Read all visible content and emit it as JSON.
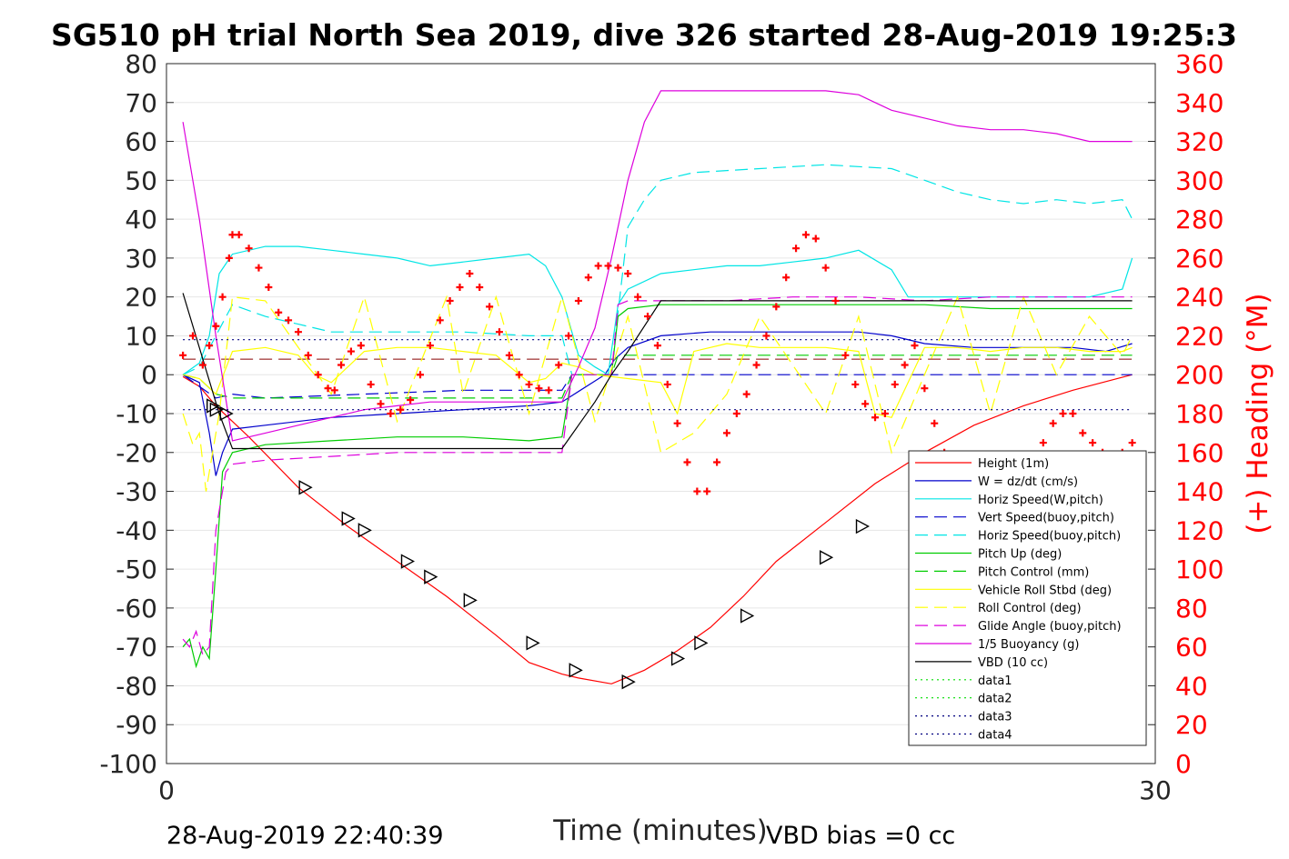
{
  "page": {
    "title": "SG510 pH trial North Sea 2019, dive 326 started 28-Aug-2019 19:25:3",
    "timestamp": "28-Aug-2019 22:40:39",
    "vbd_bias": "VBD bias =0 cc"
  },
  "chart_data": {
    "type": "line",
    "xlabel": "Time (minutes)",
    "ylabel": "",
    "y2label": "(+) Heading (°M)",
    "xlim": [
      0,
      30
    ],
    "ylim": [
      -100,
      80
    ],
    "y2lim": [
      0,
      360
    ],
    "x_ticks": [
      "0",
      "30"
    ],
    "y_ticks": [
      "80",
      "70",
      "60",
      "50",
      "40",
      "30",
      "20",
      "10",
      "0",
      "-10",
      "-20",
      "-30",
      "-40",
      "-50",
      "-60",
      "-70",
      "-80",
      "-90",
      "-100"
    ],
    "y2_ticks": [
      "360",
      "340",
      "320",
      "300",
      "280",
      "260",
      "240",
      "220",
      "200",
      "180",
      "160",
      "140",
      "120",
      "100",
      "80",
      "60",
      "40",
      "20",
      "0"
    ],
    "grid": true,
    "legend_position": "bottom-right",
    "colors": {
      "right_axis": "#ff0000",
      "left_axis": "#262626"
    },
    "series": [
      {
        "name": "Height (1m)",
        "color": "#ff0000",
        "dash": "solid",
        "axis": "left",
        "x": [
          0.5,
          1.0,
          1.5,
          2.5,
          4,
          5.5,
          7,
          8.5,
          10,
          11,
          12,
          12.5,
          13.5,
          14.5,
          15.5,
          16.5,
          17.5,
          18.5,
          20,
          21.5,
          23,
          24.5,
          26,
          27.5,
          29.3
        ],
        "y": [
          -0.5,
          -3,
          -8,
          -16,
          -29,
          -39,
          -48,
          -57,
          -67,
          -74,
          -77,
          -78,
          -79.5,
          -76,
          -71,
          -65,
          -57,
          -48,
          -38,
          -28,
          -20,
          -13,
          -8,
          -4,
          0
        ]
      },
      {
        "name": "W = dz/dt (cm/s)",
        "color": "#0000cc",
        "dash": "solid",
        "axis": "left",
        "x": [
          0.5,
          1.0,
          1.3,
          1.5,
          1.7,
          2.0,
          3,
          5,
          7,
          9,
          11,
          12,
          13.3,
          13.6,
          14,
          15,
          16.5,
          18,
          19.5,
          21,
          22,
          23,
          24.5,
          26,
          27.5,
          28.5,
          29.3
        ],
        "y": [
          0,
          -2,
          -15,
          -26,
          -20,
          -14,
          -13,
          -11,
          -10,
          -9,
          -8,
          -7,
          0,
          4,
          7,
          10,
          11,
          11,
          11,
          11,
          10,
          8,
          7,
          7,
          7,
          6,
          8
        ]
      },
      {
        "name": "Horiz Speed(W,pitch)",
        "color": "#00e5e5",
        "dash": "solid",
        "axis": "left",
        "x": [
          0.5,
          1.0,
          1.3,
          1.6,
          2.0,
          3,
          4,
          5,
          6,
          7,
          8,
          9,
          10,
          11,
          11.5,
          12,
          12.5,
          13,
          13.4,
          13.7,
          14,
          15,
          16,
          17,
          18,
          19,
          20,
          21,
          22,
          22.5,
          23,
          24,
          25,
          26,
          27,
          28,
          29,
          29.3
        ],
        "y": [
          0,
          3,
          10,
          26,
          31,
          33,
          33,
          32,
          31,
          30,
          28,
          29,
          30,
          31,
          28,
          20,
          5,
          2,
          0,
          18,
          22,
          26,
          27,
          28,
          28,
          29,
          30,
          32,
          27,
          20,
          20,
          20,
          20,
          20,
          20,
          20,
          22,
          30
        ]
      },
      {
        "name": "Vert Speed(buoy,pitch)",
        "color": "#0000cc",
        "dash": "dashed",
        "axis": "left",
        "x": [
          0.5,
          1.0,
          1.5,
          2.0,
          3,
          6,
          9,
          12,
          12.3,
          13.5,
          13.7,
          15,
          18,
          21,
          23,
          26,
          29.3
        ],
        "y": [
          0,
          -3,
          -6,
          -5,
          -6,
          -5,
          -4,
          -4,
          0,
          0,
          0,
          0,
          0,
          0,
          0,
          0,
          0
        ]
      },
      {
        "name": "Horiz Speed(buoy,pitch)",
        "color": "#00e5e5",
        "dash": "dashed",
        "axis": "left",
        "x": [
          0.5,
          1.0,
          1.5,
          2.0,
          3,
          4,
          5,
          7,
          9,
          11,
          12,
          12.3,
          13.5,
          13.7,
          14,
          14.5,
          15,
          16,
          18,
          20,
          22,
          23,
          24,
          25,
          26,
          27,
          28,
          29,
          29.3
        ],
        "y": [
          0,
          2,
          10,
          18,
          15,
          13,
          11,
          11,
          11,
          10,
          10,
          0,
          0,
          16,
          38,
          45,
          50,
          52,
          53,
          54,
          53,
          50,
          47,
          45,
          44,
          45,
          44,
          45,
          40
        ]
      },
      {
        "name": "Pitch Up (deg)",
        "color": "#00cc00",
        "dash": "solid",
        "axis": "left",
        "x": [
          0.5,
          0.7,
          0.9,
          1.1,
          1.3,
          1.5,
          1.7,
          2.0,
          3,
          5,
          7,
          9,
          11,
          12,
          12.3,
          13.5,
          13.7,
          14,
          15,
          17,
          19,
          21,
          23,
          25,
          27,
          29,
          29.3
        ],
        "y": [
          -70,
          -68,
          -75,
          -70,
          -73,
          -50,
          -25,
          -20,
          -18,
          -17,
          -16,
          -16,
          -17,
          -16,
          0,
          0,
          15,
          17,
          18,
          18,
          18,
          18,
          18,
          17,
          17,
          17,
          17
        ]
      },
      {
        "name": "Pitch Control (mm)",
        "color": "#00cc00",
        "dash": "dashed",
        "axis": "left",
        "x": [
          0.5,
          1.0,
          1.5,
          2.0,
          3,
          12,
          12.3,
          13.5,
          13.7,
          15,
          20,
          25,
          29.3
        ],
        "y": [
          0,
          -1,
          -5,
          -6,
          -6,
          -6,
          0,
          0,
          5,
          5,
          5,
          5,
          5
        ]
      },
      {
        "name": "Vehicle Roll Stbd (deg)",
        "color": "#ffff00",
        "dash": "solid",
        "axis": "left",
        "x": [
          0.5,
          1.0,
          1.5,
          2.0,
          3,
          4,
          4.5,
          5,
          6,
          7,
          8,
          9,
          10,
          11,
          11.5,
          12,
          12.5,
          13,
          14,
          15,
          15.5,
          16,
          17,
          18,
          19,
          20,
          21,
          21.5,
          22,
          23,
          24,
          25,
          26,
          27,
          28,
          29,
          29.3
        ],
        "y": [
          0,
          -1,
          -5,
          6,
          7,
          5,
          0,
          -2,
          6,
          7,
          7,
          6,
          5,
          -2,
          -1,
          3,
          2,
          0,
          -1,
          -2,
          -10,
          6,
          8,
          7,
          7,
          7,
          6,
          -10,
          -11,
          7,
          7,
          6,
          7,
          7,
          6,
          6,
          7
        ]
      },
      {
        "name": "Roll Control (deg)",
        "color": "#ffff00",
        "dash": "dashed",
        "axis": "left",
        "x": [
          0.5,
          0.8,
          1.0,
          1.2,
          1.4,
          1.6,
          2.0,
          3,
          5,
          6,
          7,
          8.5,
          9,
          10,
          11,
          12,
          13,
          14,
          15,
          16,
          17,
          18,
          20,
          21,
          22,
          24,
          25,
          26,
          27,
          28,
          29,
          29.3
        ],
        "y": [
          -10,
          -18,
          -15,
          -30,
          -20,
          -10,
          20,
          19,
          -5,
          20,
          -12,
          20,
          -5,
          20,
          -10,
          20,
          -12,
          15,
          -20,
          -15,
          -5,
          15,
          -10,
          15,
          -20,
          20,
          -10,
          20,
          0,
          15,
          5,
          10
        ]
      },
      {
        "name": "Glide Angle (buoy,pitch)",
        "color": "#dd00dd",
        "dash": "dashed",
        "axis": "left",
        "x": [
          0.5,
          0.7,
          0.9,
          1.1,
          1.3,
          1.5,
          1.8,
          2.0,
          3,
          5,
          7,
          9,
          11,
          12,
          12.3,
          13.5,
          13.7,
          14,
          15,
          17,
          19,
          21,
          23,
          25,
          27,
          29,
          29.3
        ],
        "y": [
          -68,
          -70,
          -66,
          -72,
          -70,
          -40,
          -25,
          -23,
          -22,
          -21,
          -20,
          -20,
          -20,
          -20,
          0,
          0,
          18,
          19,
          19,
          19,
          20,
          20,
          19,
          20,
          20,
          20,
          20
        ]
      },
      {
        "name": "1/5 Buoyancy (g)",
        "color": "#dd00dd",
        "dash": "solid",
        "axis": "left",
        "x": [
          0.5,
          1.0,
          1.5,
          2.0,
          3,
          4,
          5,
          6,
          7,
          8,
          9,
          10,
          11,
          12,
          12.5,
          13,
          13.5,
          14,
          14.5,
          15,
          16,
          18,
          20,
          21,
          21.5,
          22,
          23,
          24,
          25,
          26,
          27,
          28,
          29,
          29.3
        ],
        "y": [
          65,
          40,
          10,
          -17,
          -15,
          -13,
          -11,
          -9,
          -8,
          -7,
          -7,
          -7,
          -7,
          -7,
          2,
          12,
          30,
          50,
          65,
          73,
          73,
          73,
          73,
          72,
          70,
          68,
          66,
          64,
          63,
          63,
          62,
          60,
          60,
          60
        ]
      },
      {
        "name": "VBD (10 cc)",
        "color": "#000000",
        "dash": "solid",
        "axis": "left",
        "x": [
          0.5,
          1.6,
          2.0,
          4,
          6,
          8,
          10,
          12,
          12.5,
          13,
          13.5,
          14,
          15,
          16,
          18,
          20,
          22,
          24,
          26,
          28,
          29.3
        ],
        "y": [
          21,
          -10,
          -19,
          -19,
          -19,
          -19,
          -19,
          -19,
          -13,
          -7,
          0,
          6,
          19,
          19,
          19,
          19,
          19,
          19,
          19,
          19,
          19
        ]
      },
      {
        "name": "data1",
        "color": "#00dd00",
        "dash": "dotted",
        "axis": "left",
        "x": [],
        "y": []
      },
      {
        "name": "data2",
        "color": "#00dd00",
        "dash": "dotted",
        "axis": "left",
        "x": [],
        "y": []
      },
      {
        "name": "data3",
        "color": "#000080",
        "dash": "dotted",
        "axis": "left",
        "x": [
          0.5,
          29.3
        ],
        "y": [
          9,
          9
        ]
      },
      {
        "name": "data4",
        "color": "#000080",
        "dash": "dotted",
        "axis": "left",
        "x": [
          0.5,
          29.3
        ],
        "y": [
          -9,
          -9
        ]
      }
    ],
    "reference_lines": [
      {
        "color": "#880000",
        "dash": "dashed",
        "y": 4
      }
    ],
    "heading_points": {
      "color": "#ff0000",
      "marker": "+",
      "axis": "right",
      "x": [
        0.5,
        0.8,
        1.1,
        1.3,
        1.5,
        1.7,
        1.9,
        2.0,
        2.2,
        2.5,
        2.8,
        3.1,
        3.4,
        3.7,
        4.0,
        4.3,
        4.6,
        4.9,
        5.1,
        5.3,
        5.6,
        5.9,
        6.2,
        6.5,
        6.8,
        7.1,
        7.4,
        7.7,
        8.0,
        8.3,
        8.6,
        8.9,
        9.2,
        9.5,
        9.8,
        10.1,
        10.4,
        10.7,
        11.0,
        11.3,
        11.6,
        11.9,
        12.2,
        12.5,
        12.8,
        13.1,
        13.4,
        13.7,
        14.0,
        14.3,
        14.6,
        14.9,
        15.2,
        15.5,
        15.8,
        16.1,
        16.4,
        16.7,
        17.0,
        17.3,
        17.6,
        17.9,
        18.2,
        18.5,
        18.8,
        19.1,
        19.4,
        19.7,
        20.0,
        20.3,
        20.6,
        20.9,
        21.2,
        21.5,
        21.8,
        22.1,
        22.4,
        22.7,
        23.0,
        23.3,
        23.6,
        23.9,
        24.2,
        24.5,
        24.8,
        25.1,
        25.4,
        25.7,
        26.0,
        26.3,
        26.6,
        26.9,
        27.2,
        27.5,
        27.8,
        28.1,
        28.4,
        28.7,
        29.0,
        29.3
      ],
      "y": [
        210,
        220,
        205,
        215,
        225,
        240,
        260,
        272,
        272,
        265,
        255,
        245,
        232,
        228,
        222,
        210,
        200,
        193,
        192,
        205,
        212,
        215,
        195,
        185,
        180,
        182,
        187,
        200,
        215,
        228,
        238,
        245,
        252,
        245,
        235,
        222,
        210,
        200,
        195,
        193,
        192,
        205,
        220,
        238,
        250,
        256,
        256,
        255,
        252,
        240,
        230,
        215,
        195,
        175,
        155,
        140,
        140,
        155,
        170,
        180,
        190,
        205,
        220,
        235,
        250,
        265,
        272,
        270,
        255,
        238,
        210,
        195,
        185,
        178,
        180,
        195,
        205,
        215,
        193,
        175,
        160,
        150,
        140,
        125,
        115,
        110,
        115,
        125,
        132,
        150,
        165,
        175,
        180,
        180,
        170,
        165,
        160,
        155,
        160,
        165
      ]
    },
    "position_markers": {
      "color": "#000000",
      "marker": "triangle-right",
      "x": [
        1.4,
        1.5,
        1.8,
        4.2,
        5.5,
        6.0,
        7.3,
        8.0,
        9.2,
        11.1,
        12.4,
        14.0,
        15.5,
        16.2,
        17.6,
        20.0,
        21.1,
        22.7
      ],
      "y": [
        -8,
        -9,
        -10,
        -29,
        -37,
        -40,
        -48,
        -52,
        -58,
        -69,
        -76,
        -79,
        -73,
        -69,
        -62,
        -47,
        -39,
        -31
      ]
    }
  }
}
